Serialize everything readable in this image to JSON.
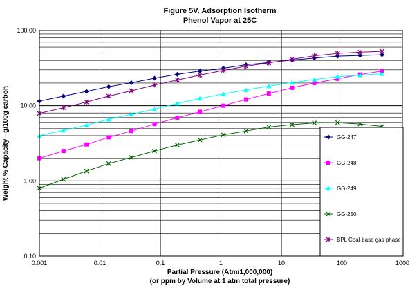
{
  "chart_data": {
    "type": "line",
    "title": "Figure 5V. Adsorption Isotherm",
    "subtitle": "Phenol Vapor at 25C",
    "xlabel": "Partial Pressure (Atm/1,000,000)",
    "xlabel2": "(or ppm by Volume at 1 atm total pressure)",
    "ylabel": "Weight % Capacity - g/100g carbon",
    "x_scale": "log",
    "y_scale": "log",
    "xlim": [
      0.001,
      1000
    ],
    "ylim": [
      0.1,
      100
    ],
    "x_tick_labels": [
      "0.001",
      "0.01",
      "0.1",
      "1",
      "10",
      "100",
      "1000"
    ],
    "y_tick_labels": [
      "0.10",
      "1.00",
      "10.00",
      "100.00"
    ],
    "grid": true,
    "legend_position": "right",
    "series": [
      {
        "name": "GG-247",
        "color": "#000080",
        "marker": "diamond",
        "x": [
          0.001,
          0.0025,
          0.006,
          0.014,
          0.033,
          0.08,
          0.19,
          0.45,
          1.1,
          2.6,
          6.2,
          15,
          35,
          85,
          200,
          460
        ],
        "y": [
          11.5,
          13.4,
          15.5,
          17.9,
          20.2,
          23.2,
          26.1,
          28.9,
          31.5,
          35,
          37.5,
          40.5,
          43,
          45.5,
          46.5,
          47.5
        ]
      },
      {
        "name": "GG-248",
        "color": "#ff00ff",
        "marker": "square",
        "x": [
          0.001,
          0.0025,
          0.006,
          0.014,
          0.033,
          0.08,
          0.19,
          0.45,
          1.1,
          2.6,
          6.2,
          15,
          35,
          85,
          200,
          460
        ],
        "y": [
          2.0,
          2.5,
          3.05,
          3.8,
          4.6,
          5.7,
          6.9,
          8.3,
          10.0,
          12.1,
          14.5,
          17.3,
          20.0,
          22.8,
          26.0,
          28.9
        ]
      },
      {
        "name": "GG-249",
        "color": "#00ffff",
        "marker": "triangle",
        "x": [
          0.001,
          0.0025,
          0.006,
          0.014,
          0.033,
          0.08,
          0.19,
          0.45,
          1.1,
          2.6,
          6.2,
          15,
          35,
          85,
          200,
          460
        ],
        "y": [
          4.0,
          4.7,
          5.5,
          6.6,
          7.7,
          9.0,
          10.7,
          12.5,
          14.3,
          16.2,
          18.2,
          20.3,
          22.3,
          24.3,
          25.5,
          26.5
        ]
      },
      {
        "name": "GG-250",
        "color": "#006400",
        "marker": "x",
        "x": [
          0.001,
          0.0025,
          0.006,
          0.014,
          0.033,
          0.08,
          0.19,
          0.45,
          1.1,
          2.6,
          6.2,
          15,
          35,
          85,
          200,
          460
        ],
        "y": [
          0.8,
          1.05,
          1.35,
          1.7,
          2.05,
          2.5,
          3.0,
          3.5,
          4.1,
          4.6,
          5.2,
          5.6,
          5.9,
          5.95,
          5.7,
          5.3
        ]
      },
      {
        "name": "BPL Coal-base gas phase",
        "color": "#800080",
        "marker": "star",
        "x": [
          0.001,
          0.0025,
          0.006,
          0.014,
          0.033,
          0.08,
          0.19,
          0.45,
          1.1,
          2.6,
          6.2,
          15,
          35,
          85,
          200,
          460
        ],
        "y": [
          7.9,
          9.4,
          11.2,
          13.4,
          15.8,
          18.8,
          22.0,
          25.5,
          29.5,
          33.5,
          37.0,
          41.5,
          46.0,
          49.5,
          51.5,
          53.0
        ]
      }
    ]
  }
}
